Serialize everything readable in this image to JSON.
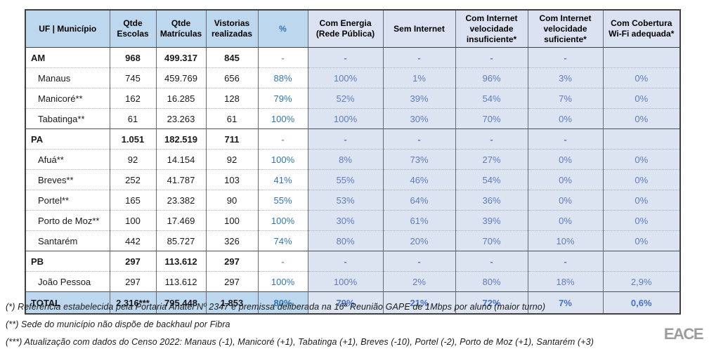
{
  "table": {
    "columns": [
      "UF | Município",
      "Qtde Escolas",
      "Qtde Matrículas",
      "Vistorias realizadas",
      "%",
      "Com Energia (Rede Pública)",
      "Sem Internet",
      "Com Internet velocidade insuficiente*",
      "Com Internet velocidade suficiente*",
      "Com Cobertura Wi-Fi adequada*"
    ],
    "rows": [
      {
        "type": "section",
        "cells": [
          "AM",
          "968",
          "499.317",
          "845",
          "-",
          "-",
          "-",
          "-",
          "-",
          ""
        ]
      },
      {
        "type": "municipio",
        "cells": [
          "Manaus",
          "745",
          "459.769",
          "656",
          "88%",
          "100%",
          "1%",
          "96%",
          "3%",
          "0%"
        ]
      },
      {
        "type": "municipio",
        "cells": [
          "Manicoré**",
          "162",
          "16.285",
          "128",
          "79%",
          "52%",
          "39%",
          "54%",
          "7%",
          "0%"
        ]
      },
      {
        "type": "municipio",
        "cells": [
          "Tabatinga**",
          "61",
          "23.263",
          "61",
          "100%",
          "100%",
          "30%",
          "70%",
          "0%",
          "0%"
        ]
      },
      {
        "type": "section",
        "cells": [
          "PA",
          "1.051",
          "182.519",
          "711",
          "-",
          "-",
          "-",
          "-",
          "-",
          ""
        ]
      },
      {
        "type": "municipio",
        "cells": [
          "Afuá**",
          "92",
          "14.154",
          "92",
          "100%",
          "8%",
          "73%",
          "27%",
          "0%",
          "0%"
        ]
      },
      {
        "type": "municipio",
        "cells": [
          "Breves**",
          "252",
          "41.787",
          "103",
          "41%",
          "55%",
          "46%",
          "54%",
          "0%",
          "0%"
        ]
      },
      {
        "type": "municipio",
        "cells": [
          "Portel**",
          "165",
          "23.382",
          "90",
          "55%",
          "53%",
          "64%",
          "36%",
          "0%",
          "0%"
        ]
      },
      {
        "type": "municipio",
        "cells": [
          "Porto de Moz**",
          "100",
          "17.469",
          "100",
          "100%",
          "30%",
          "61%",
          "39%",
          "0%",
          "0%"
        ]
      },
      {
        "type": "municipio",
        "cells": [
          "Santarém",
          "442",
          "85.727",
          "326",
          "74%",
          "80%",
          "20%",
          "70%",
          "10%",
          "0%"
        ]
      },
      {
        "type": "section",
        "cells": [
          "PB",
          "297",
          "113.612",
          "297",
          "-",
          "-",
          "-",
          "-",
          "-",
          ""
        ]
      },
      {
        "type": "municipio",
        "cells": [
          "João Pessoa",
          "297",
          "113.612",
          "297",
          "100%",
          "100%",
          "2%",
          "80%",
          "18%",
          "2,9%"
        ]
      },
      {
        "type": "total",
        "cells": [
          "TOTAL",
          "2.316***",
          "795.448",
          "1.853",
          "80%",
          "79%",
          "21%",
          "72%",
          "7%",
          "0,6%"
        ]
      }
    ]
  },
  "footnotes": [
    "(*) Referência estabelecida pela Portaria Anatel Nº 2347 e premissa deliberada na 16ª Reunião GAPE de 1Mbps por aluno (maior turno)",
    "(**) Sede do município não dispõe de backhaul por Fibra",
    "(***) Atualização com dados do Censo 2022: Manaus (-1), Manicoré (+1), Tabatinga (+1), Breves (-10), Portel (-2), Porto de Moz (+1), Santarém (+3)"
  ],
  "logo": {
    "text": "EACE"
  },
  "colors": {
    "header_bg": "#bdd7ee",
    "header_shade_bg": "#dae1f0",
    "shade_col_bg": "#dce3f1",
    "accent_blue": "#2e75b6",
    "muted_blue": "#5f7dc0",
    "border_dark": "#404040",
    "logo_gray": "#9c9c9c"
  }
}
